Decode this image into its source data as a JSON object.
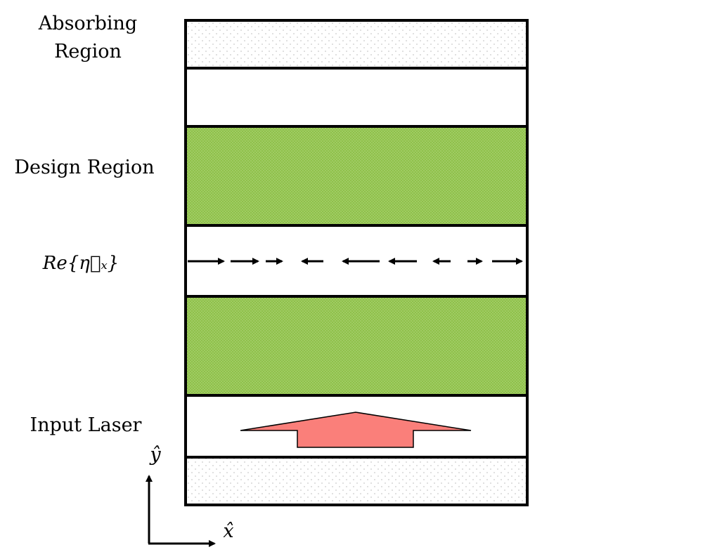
{
  "labels": {
    "absorbing_line1": "Absorbing",
    "absorbing_line2": "Region",
    "design_region": "Design Region",
    "re_eta": "Re{η⃗ₓ}",
    "input_laser": "Input Laser",
    "y_axis": "ŷ",
    "x_axis": "x̂"
  },
  "colors": {
    "outline": "#000000",
    "design_fill": "#8fc14a",
    "laser_arrow": "#fa7f7a",
    "absorbing_dots": "#c9c9c9"
  },
  "eta_arrows": [
    {
      "direction": "right"
    },
    {
      "direction": "right"
    },
    {
      "direction": "right"
    },
    {
      "direction": "left"
    },
    {
      "direction": "left"
    },
    {
      "direction": "left"
    },
    {
      "direction": "left"
    },
    {
      "direction": "right"
    },
    {
      "direction": "right"
    }
  ]
}
